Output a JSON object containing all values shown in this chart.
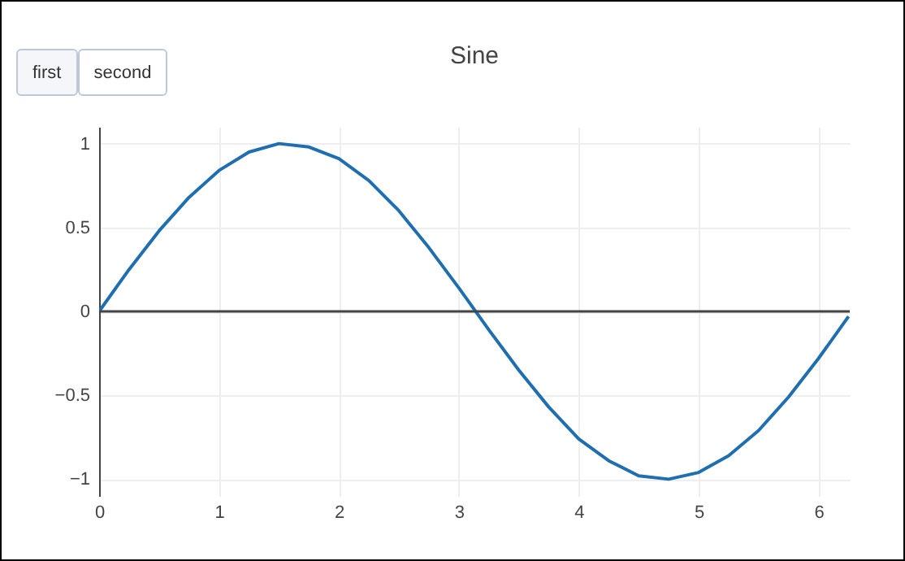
{
  "chart_data": {
    "type": "line",
    "title": "Sine",
    "annotations": [
      "first",
      "second"
    ],
    "x": [
      0,
      0.25,
      0.5,
      0.75,
      1,
      1.25,
      1.5,
      1.75,
      2,
      2.25,
      2.5,
      2.75,
      3,
      3.25,
      3.5,
      3.75,
      4,
      4.25,
      4.5,
      4.75,
      5,
      5.25,
      5.5,
      5.75,
      6,
      6.25
    ],
    "series": [
      {
        "color": "#1f6fb0",
        "values": [
          0,
          0.25,
          0.48,
          0.68,
          0.84,
          0.95,
          1.0,
          0.98,
          0.91,
          0.78,
          0.6,
          0.38,
          0.14,
          -0.11,
          -0.35,
          -0.57,
          -0.76,
          -0.89,
          -0.98,
          -1.0,
          -0.96,
          -0.86,
          -0.71,
          -0.51,
          -0.28,
          -0.03
        ]
      }
    ],
    "xlim": [
      0,
      6.26
    ],
    "xticks": [
      0,
      1,
      2,
      3,
      4,
      5,
      6
    ],
    "ylim": [
      -1.1,
      1.1
    ],
    "yticks": [
      {
        "value": -1,
        "label": "−1"
      },
      {
        "value": -0.5,
        "label": "−0.5"
      },
      0,
      0.5,
      1
    ],
    "ref_lines": [
      {
        "axis": "y",
        "value": 0,
        "color": "#444444"
      }
    ],
    "grid": true,
    "marker": "none",
    "line_style": "solid"
  }
}
